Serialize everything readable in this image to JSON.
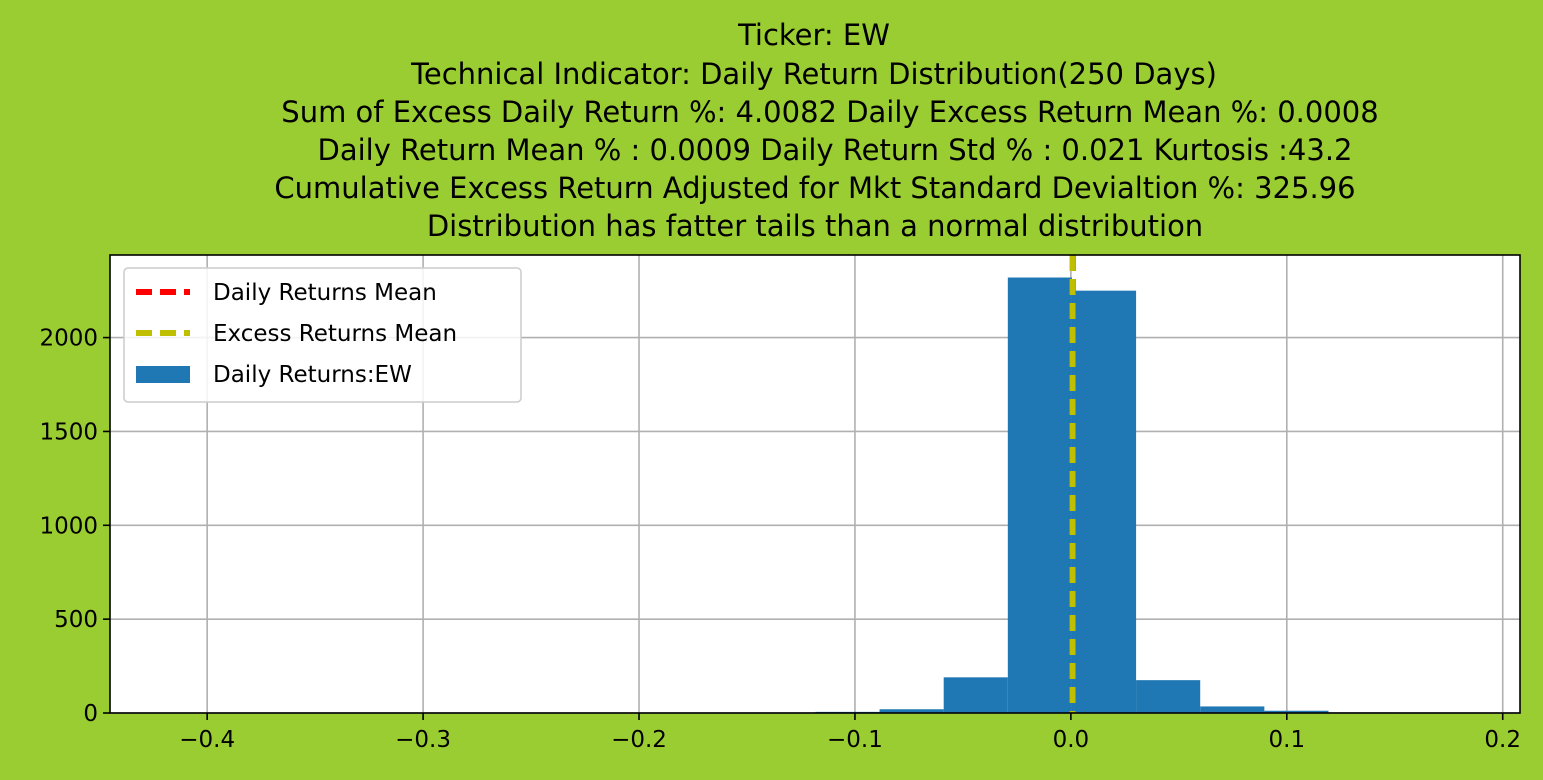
{
  "chart_data": {
    "type": "bar",
    "title_lines": [
      "Ticker: EW",
      "Technical Indicator: Daily Return Distribution(250 Days)",
      "Sum of Excess Daily Return %: 4.0082   Daily Excess Return Mean %: 0.0008",
      "Daily Return Mean % : 0.0009    Daily Return Std % : 0.021  Kurtosis :43.2",
      "Cumulative Excess Return Adjusted for Mkt Standard Devialtion %: 325.96",
      "Distribution has fatter tails than a normal distribution"
    ],
    "xlim": [
      -0.445,
      0.208
    ],
    "ylim": [
      0,
      2440
    ],
    "xticks": [
      -0.4,
      -0.3,
      -0.2,
      -0.1,
      0.0,
      0.1,
      0.2
    ],
    "xtick_labels": [
      "−0.4",
      "−0.3",
      "−0.2",
      "−0.1",
      "0.0",
      "0.1",
      "0.2"
    ],
    "yticks": [
      0,
      500,
      1000,
      1500,
      2000
    ],
    "ytick_labels": [
      "0",
      "500",
      "1000",
      "1500",
      "2000"
    ],
    "grid": true,
    "legend_position": "upper-left",
    "histogram": {
      "name": "Daily Returns:EW",
      "color": "#1f77b4",
      "bin_edges": [
        -0.445,
        -0.4153,
        -0.3856,
        -0.3559,
        -0.3262,
        -0.2965,
        -0.2668,
        -0.2371,
        -0.2074,
        -0.1777,
        -0.148,
        -0.1183,
        -0.0886,
        -0.0589,
        -0.0292,
        0.0005,
        0.0302,
        0.0599,
        0.0896,
        0.1193,
        0.149,
        0.1787,
        0.2084
      ],
      "counts": [
        1,
        0,
        0,
        0,
        0,
        0,
        0,
        0,
        0,
        0,
        0,
        6,
        20,
        190,
        2320,
        2250,
        175,
        35,
        12,
        3,
        1,
        1
      ]
    },
    "vlines": [
      {
        "name": "Daily Returns Mean",
        "x": 0.0009,
        "color": "#ff0000"
      },
      {
        "name": "Excess Returns Mean",
        "x": 0.0008,
        "color": "#bfbf00"
      }
    ]
  }
}
